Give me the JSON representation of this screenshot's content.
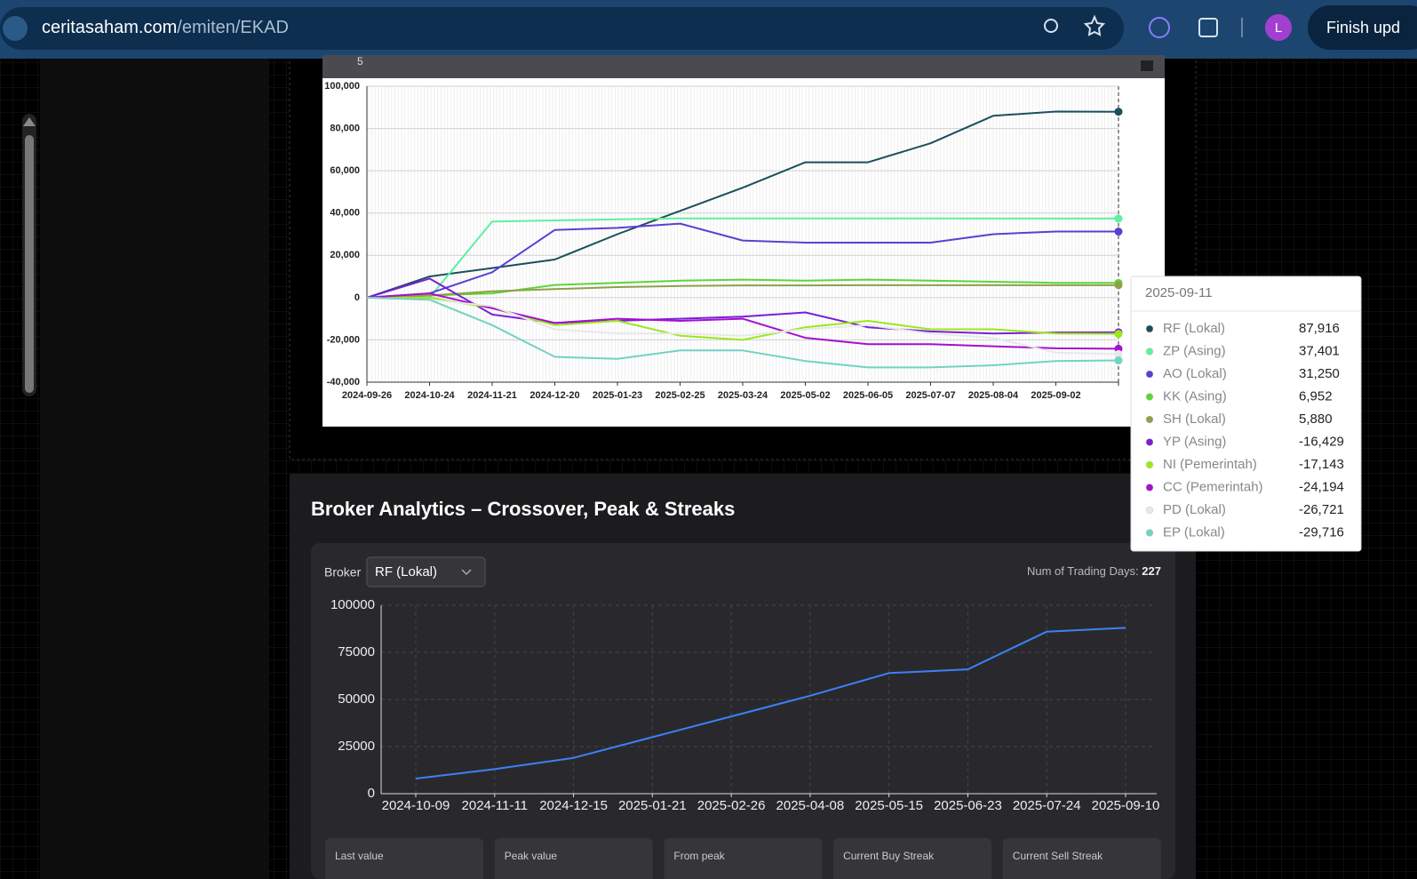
{
  "browser": {
    "domain": "ceritasaham.com",
    "path": "/emiten/EKAD",
    "avatar": "L",
    "button": "Finish upd"
  },
  "range_input": "5",
  "chart_data": [
    {
      "type": "line",
      "categories": [
        "2024-09-26",
        "2024-10-24",
        "2024-11-21",
        "2024-12-20",
        "2025-01-23",
        "2025-02-25",
        "2025-03-24",
        "2025-05-02",
        "2025-06-05",
        "2025-07-07",
        "2025-08-04",
        "2025-09-02",
        null
      ],
      "series": [
        {
          "name": "RF (Lokal)",
          "color": "#1b4f5c",
          "values": [
            0,
            10000,
            14000,
            18000,
            30000,
            41000,
            52000,
            64000,
            64000,
            73000,
            86000,
            88000,
            87916
          ]
        },
        {
          "name": "ZP (Asing)",
          "color": "#5ef0a0",
          "values": [
            0,
            0,
            36000,
            36500,
            37000,
            37500,
            37500,
            37500,
            37500,
            37500,
            37400,
            37400,
            37401
          ]
        },
        {
          "name": "AO (Lokal)",
          "color": "#5b3fd1",
          "values": [
            0,
            2000,
            12000,
            32000,
            33000,
            35000,
            27000,
            26000,
            26000,
            26000,
            30000,
            31250,
            31250
          ]
        },
        {
          "name": "KK (Asing)",
          "color": "#5fd43a",
          "values": [
            0,
            1000,
            2000,
            6000,
            7000,
            8000,
            8500,
            8000,
            8500,
            8000,
            7500,
            7000,
            6952
          ]
        },
        {
          "name": "SH (Lokal)",
          "color": "#8fa04a",
          "values": [
            0,
            1000,
            3000,
            4000,
            5000,
            5500,
            5800,
            5800,
            5880,
            5880,
            5880,
            5880,
            5880
          ]
        },
        {
          "name": "YP (Asing)",
          "color": "#7a1fd6",
          "values": [
            0,
            9000,
            -8000,
            -12000,
            -11000,
            -10000,
            -9000,
            -7000,
            -14000,
            -16000,
            -17000,
            -16500,
            -16429
          ]
        },
        {
          "name": "NI (Pemerintah)",
          "color": "#9be81a",
          "values": [
            0,
            0,
            -5000,
            -13000,
            -11000,
            -18000,
            -20000,
            -14000,
            -11000,
            -15000,
            -15000,
            -17000,
            -17143
          ]
        },
        {
          "name": "CC (Pemerintah)",
          "color": "#a50fd0",
          "values": [
            0,
            2000,
            -5000,
            -12000,
            -10000,
            -11000,
            -10000,
            -19000,
            -22000,
            -22000,
            -23000,
            -24000,
            -24194
          ]
        },
        {
          "name": "PD (Lokal)",
          "color": "#e8e8e8",
          "values": [
            0,
            -1000,
            -4000,
            -15000,
            -17000,
            -17000,
            -18000,
            -15000,
            -13000,
            -17000,
            -19000,
            -26000,
            -26721
          ]
        },
        {
          "name": "EP (Lokal)",
          "color": "#72d3c0",
          "values": [
            0,
            -1000,
            -13000,
            -28000,
            -29000,
            -25000,
            -25000,
            -30000,
            -33000,
            -33000,
            -32000,
            -30000,
            -29716
          ]
        }
      ],
      "ylim": [
        -40000,
        100000
      ],
      "yticks": [
        {
          "value": -40000,
          "label": "-40,000"
        },
        {
          "value": -20000,
          "label": "-20,000"
        },
        0,
        {
          "value": 20000,
          "label": "20,000"
        },
        {
          "value": 40000,
          "label": "40,000"
        },
        {
          "value": 60000,
          "label": "60,000"
        },
        {
          "value": 80000,
          "label": "80,000"
        },
        {
          "value": 100000,
          "label": "100,000"
        }
      ],
      "grid": true,
      "tooltip": {
        "title": "2025-09-11",
        "labels": [
          "87,916",
          "37,401",
          "31,250",
          "6,952",
          "5,880",
          "-16,429",
          "-17,143",
          "-24,194",
          "-26,721",
          "-29,716"
        ]
      }
    },
    {
      "type": "line",
      "title": "Broker Analytics – Crossover, Peak & Streaks",
      "categories": [
        "2024-10-09",
        "2024-11-11",
        "2024-12-15",
        "2025-01-21",
        "2025-02-26",
        "2025-04-08",
        "2025-05-15",
        "2025-06-23",
        "2025-07-24",
        "2025-09-10"
      ],
      "series": [
        {
          "name": "RF (Lokal)",
          "color": "#3b82f6",
          "values": [
            8000,
            13000,
            19000,
            30000,
            41000,
            52000,
            64000,
            66000,
            86000,
            88000
          ]
        }
      ],
      "ylim": [
        0,
        100000
      ],
      "yticks": [
        0,
        25000,
        50000,
        75000,
        100000
      ],
      "grid": true
    }
  ],
  "analytics": {
    "broker_label": "Broker",
    "broker_value": "RF (Lokal)",
    "days_label": "Num of Trading Days:",
    "days_value": 227
  },
  "cards": [
    "Last value",
    "Peak value",
    "From peak",
    "Current Buy Streak",
    "Current Sell Streak"
  ]
}
